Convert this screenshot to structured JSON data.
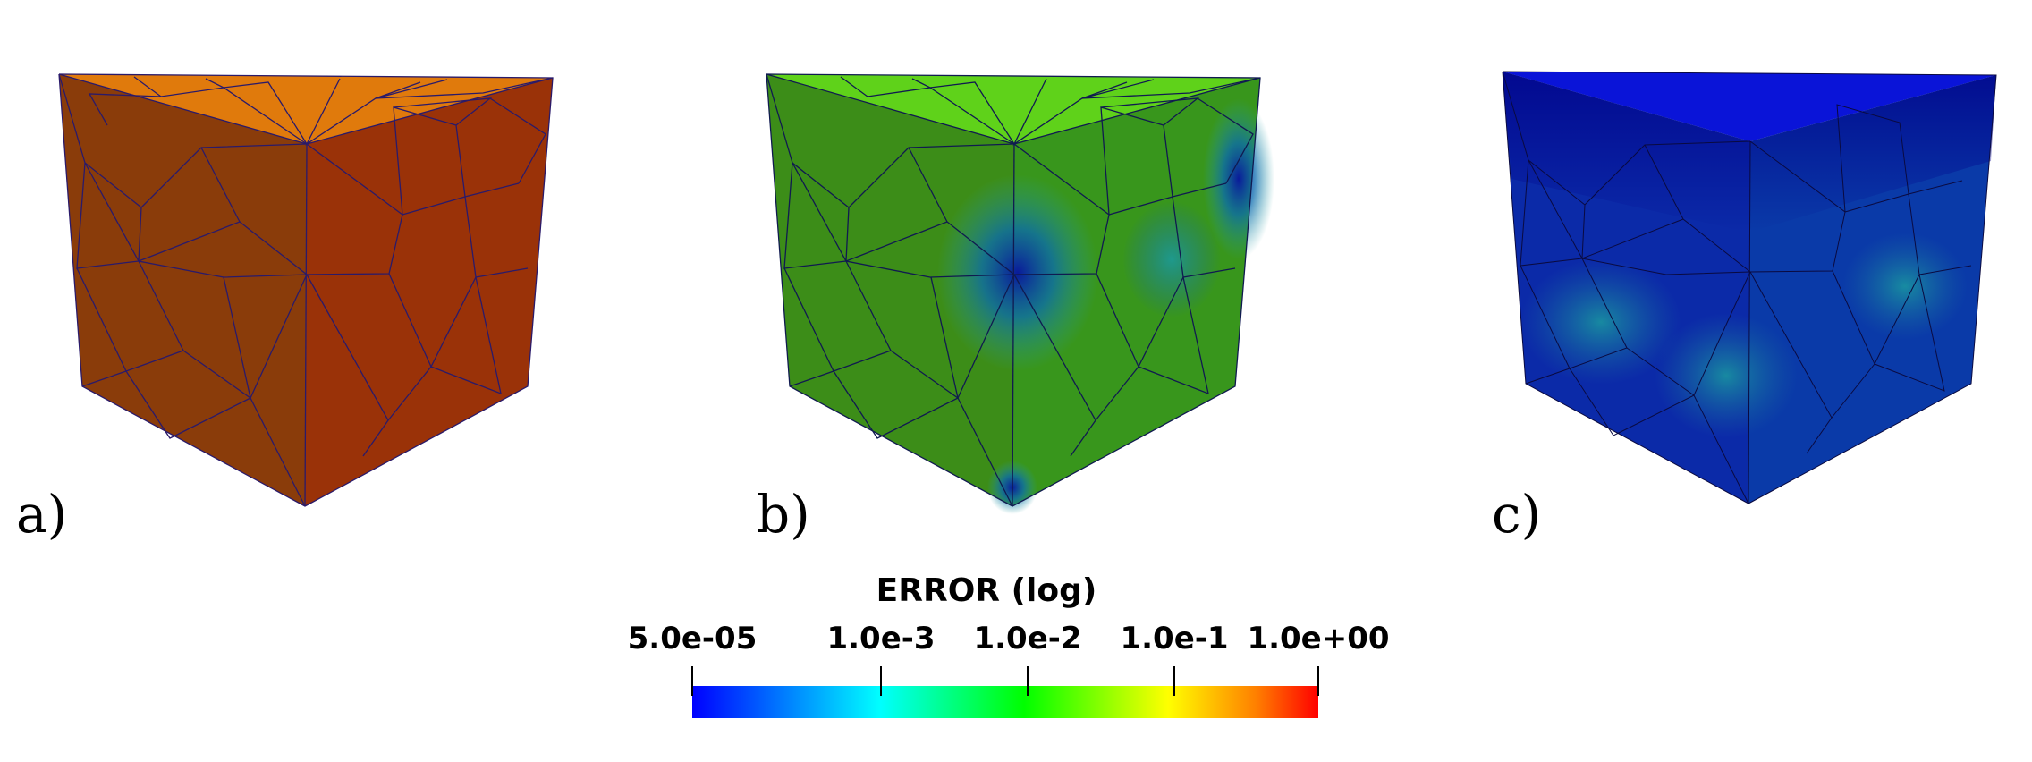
{
  "panels": [
    {
      "label": "a)",
      "top_color": "#e07a0c",
      "left_color": "#8a3c0a",
      "right_color": "#9a3208",
      "mesh_color": "#2a1a6a"
    },
    {
      "label": "b)",
      "top_color": "#5fd21a",
      "left_color": "#3c8d18",
      "right_color": "#38961c",
      "mesh_color": "#101a50"
    },
    {
      "label": "c)",
      "top_color": "#0a14d8",
      "left_color": "#0b2aa8",
      "right_color": "#0a3aa8",
      "mesh_color": "#0a0a40"
    }
  ],
  "colorbar": {
    "title": "ERROR (log)",
    "ticks": [
      "5.0e-05",
      "1.0e-3",
      "1.0e-2",
      "1.0e-1",
      "1.0e+00"
    ],
    "colors": [
      "#0000ff",
      "#00ffff",
      "#00ff00",
      "#ffff00",
      "#ff0000"
    ]
  }
}
